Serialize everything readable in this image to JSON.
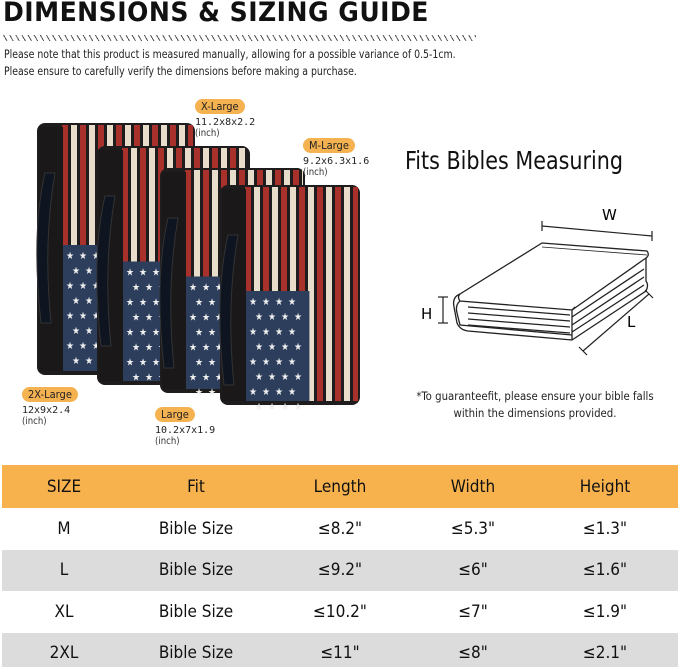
{
  "header": {
    "title": "DIMENSIONS & SIZING GUIDE",
    "notes": [
      "Please note that this product is measured manually, allowing for a possible variance of 0.5-1cm.",
      "Please ensure to carefully verify the dimensions before making a purchase."
    ]
  },
  "sizes": [
    {
      "label": "X-Large",
      "dims": "11.2x8x2.2",
      "unit": "(inch)"
    },
    {
      "label": "M-Large",
      "dims": "9.2x6.3x1.6",
      "unit": "(inch)"
    },
    {
      "label": "2X-Large",
      "dims": "12x9x2.4",
      "unit": "(inch)"
    },
    {
      "label": "Large",
      "dims": "10.2x7x1.9",
      "unit": "(inch)"
    }
  ],
  "diagram": {
    "title": "Fits Bibles Measuring",
    "w": "W",
    "h": "H",
    "l": "L",
    "note": [
      "*To guaranteefit, please ensure your bible falls",
      "within the dimensions provided."
    ]
  },
  "table": {
    "headers": [
      "SIZE",
      "Fit",
      "Length",
      "Width",
      "Height"
    ],
    "rows": [
      [
        "M",
        "Bible Size",
        "≤8.2\"",
        "≤5.3\"",
        "≤1.3\""
      ],
      [
        "L",
        "Bible Size",
        "≤9.2\"",
        "≤6\"",
        "≤1.6\""
      ],
      [
        "XL",
        "Bible Size",
        "≤10.2\"",
        "≤7\"",
        "≤1.9\""
      ],
      [
        "2XL",
        "Bible Size",
        "≤11\"",
        "≤8\"",
        "≤2.1\""
      ]
    ]
  },
  "colors": {
    "accent": "#f7b24e",
    "row_alt": "#dcdcdc",
    "flag_red": "#a8322b",
    "flag_blue": "#2c3e5c"
  }
}
